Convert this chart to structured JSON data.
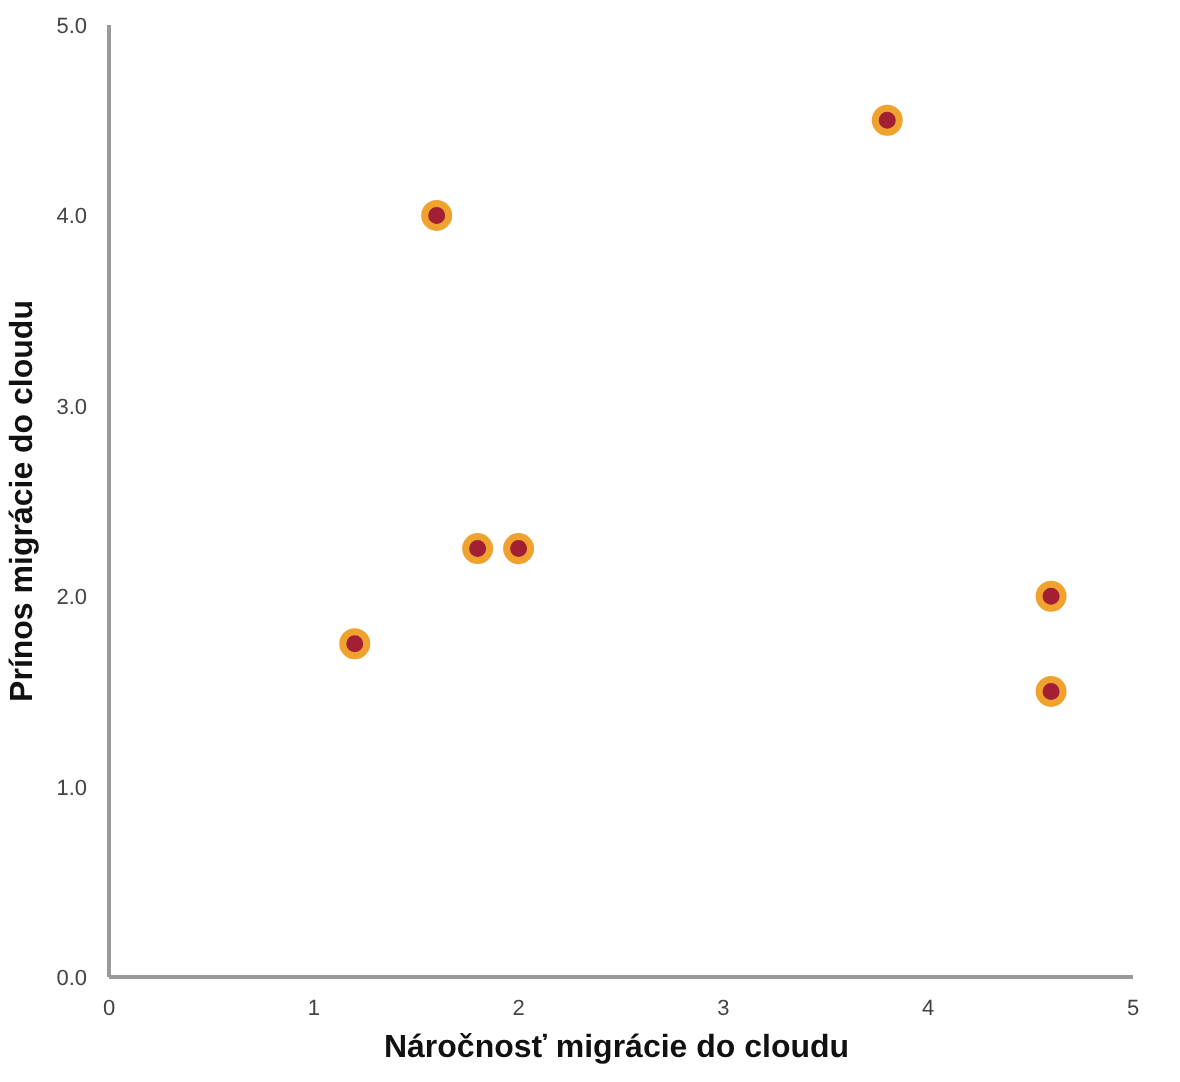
{
  "chart_data": {
    "type": "scatter",
    "xlabel": "Náročnosť migrácie  do cloudu",
    "ylabel": "Prínos migrácie do cloudu",
    "x": [
      1.2,
      1.6,
      1.8,
      2.0,
      3.8,
      4.6,
      4.6
    ],
    "series": [
      {
        "color": "#a31f34",
        "values": [
          1.75,
          4.0,
          2.25,
          2.25,
          4.5,
          2.0,
          1.5
        ]
      }
    ],
    "marker": "circle",
    "xlim": [
      0,
      5
    ],
    "xticks": [
      0,
      1,
      2,
      3,
      4,
      5
    ],
    "ylim": [
      0,
      5
    ],
    "yticks": [
      {
        "value": 0,
        "label": "0.0"
      },
      {
        "value": 1,
        "label": "1.0"
      },
      {
        "value": 2,
        "label": "2.0"
      },
      {
        "value": 3,
        "label": "3.0"
      },
      {
        "value": 4,
        "label": "4.0"
      },
      {
        "value": 5,
        "label": "5.0"
      }
    ],
    "grid": false
  }
}
